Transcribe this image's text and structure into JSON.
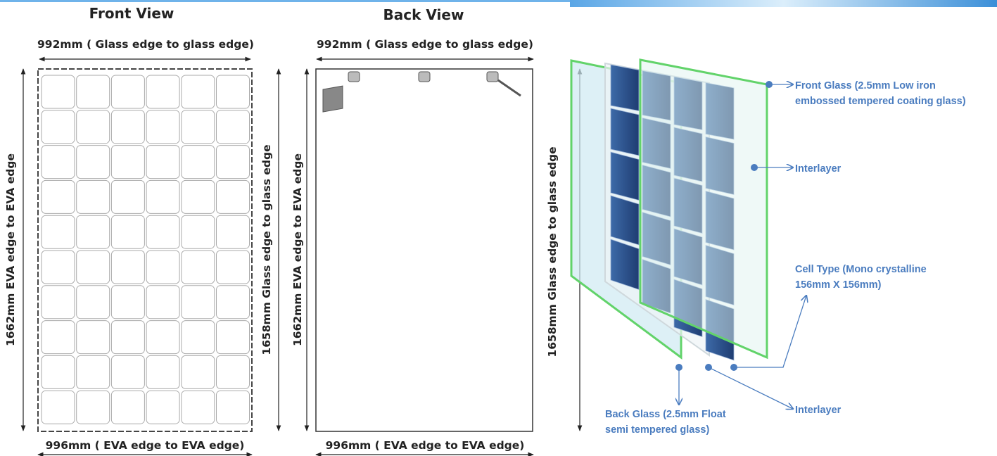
{
  "front_view": {
    "title": "Front View",
    "top_dimension": "992mm ( Glass edge to glass edge)",
    "bottom_dimension": "996mm ( EVA edge to EVA edge)",
    "left_dimension": "1662mm EVA edge to EVA edge",
    "right_dimension": "1658mm Glass edge to glass edge"
  },
  "back_view": {
    "title": "Back View",
    "top_dimension": "992mm ( Glass edge to glass edge)",
    "bottom_dimension": "996mm ( EVA edge to EVA edge)",
    "left_dimension": "1662mm EVA edge to EVA edge",
    "right_dimension": "1658mm Glass edge to glass edge"
  },
  "exploded_view": {
    "labels": [
      {
        "lines": [
          "Front Glass (2.5mm Low iron",
          "embossed tempered coating glass)"
        ]
      },
      {
        "lines": [
          "Interlayer"
        ]
      },
      {
        "lines": [
          "Cell Type (Mono crystalline",
          "156mm X 156mm)"
        ]
      },
      {
        "lines": [
          "Back Glass (2.5mm Float",
          "semi tempered glass)"
        ]
      },
      {
        "lines": [
          "Interlayer"
        ]
      }
    ]
  }
}
